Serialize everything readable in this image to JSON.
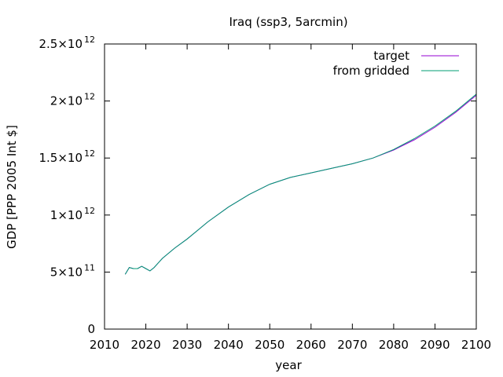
{
  "chart_data": {
    "type": "line",
    "title": "Iraq (ssp3, 5arcmin)",
    "xlabel": "year",
    "ylabel": "GDP [PPP 2005 Int $]",
    "xlim": [
      2010,
      2100
    ],
    "ylim": [
      0,
      2500000000000.0
    ],
    "grid": false,
    "legend_position": "top-right",
    "x_ticks": [
      2010,
      2020,
      2030,
      2040,
      2050,
      2060,
      2070,
      2080,
      2090,
      2100
    ],
    "x_tick_labels": [
      "2010",
      "2020",
      "2030",
      "2040",
      "2050",
      "2060",
      "2070",
      "2080",
      "2090",
      "2100"
    ],
    "y_ticks": [
      0,
      500000000000.0,
      1000000000000.0,
      1500000000000.0,
      2000000000000.0,
      2500000000000.0
    ],
    "y_tick_labels": [
      {
        "base": "0",
        "exp": ""
      },
      {
        "base": "5×10",
        "exp": "11"
      },
      {
        "base": "1×10",
        "exp": "12"
      },
      {
        "base": "1.5×10",
        "exp": "12"
      },
      {
        "base": "2×10",
        "exp": "12"
      },
      {
        "base": "2.5×10",
        "exp": "12"
      }
    ],
    "series": [
      {
        "name": "target",
        "color": "#9400d3",
        "x": [
          2015,
          2016,
          2017,
          2018,
          2019,
          2020,
          2021,
          2022,
          2023,
          2024,
          2025,
          2027,
          2030,
          2033,
          2035,
          2040,
          2045,
          2050,
          2055,
          2060,
          2065,
          2070,
          2075,
          2080,
          2085,
          2090,
          2095,
          2100
        ],
        "y": [
          480000000000.0,
          540000000000.0,
          530000000000.0,
          530000000000.0,
          550000000000.0,
          530000000000.0,
          510000000000.0,
          540000000000.0,
          580000000000.0,
          620000000000.0,
          650000000000.0,
          710000000000.0,
          790000000000.0,
          880000000000.0,
          940000000000.0,
          1070000000000.0,
          1180000000000.0,
          1270000000000.0,
          1330000000000.0,
          1370000000000.0,
          1410000000000.0,
          1450000000000.0,
          1500000000000.0,
          1570000000000.0,
          1660000000000.0,
          1770000000000.0,
          1900000000000.0,
          2050000000000.0
        ]
      },
      {
        "name": "from gridded",
        "color": "#009e73",
        "x": [
          2015,
          2016,
          2017,
          2018,
          2019,
          2020,
          2021,
          2022,
          2023,
          2024,
          2025,
          2027,
          2030,
          2033,
          2035,
          2040,
          2045,
          2050,
          2055,
          2060,
          2065,
          2070,
          2075,
          2080,
          2085,
          2090,
          2095,
          2100
        ],
        "y": [
          480000000000.0,
          540000000000.0,
          530000000000.0,
          530000000000.0,
          550000000000.0,
          530000000000.0,
          510000000000.0,
          540000000000.0,
          580000000000.0,
          620000000000.0,
          650000000000.0,
          710000000000.0,
          790000000000.0,
          880000000000.0,
          940000000000.0,
          1070000000000.0,
          1180000000000.0,
          1270000000000.0,
          1330000000000.0,
          1370000000000.0,
          1410000000000.0,
          1450000000000.0,
          1500000000000.0,
          1575000000000.0,
          1670000000000.0,
          1780000000000.0,
          1910000000000.0,
          2060000000000.0
        ]
      }
    ]
  }
}
